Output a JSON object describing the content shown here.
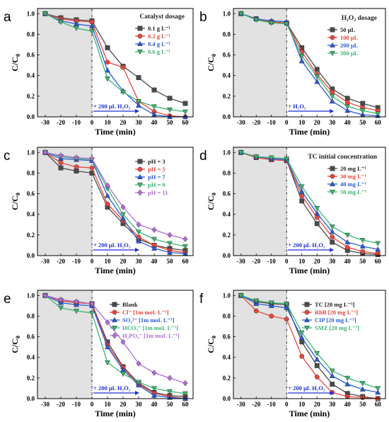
{
  "figure": {
    "x_ticks": [
      "-30",
      "-20",
      "-10",
      "0",
      "10",
      "20",
      "30",
      "40",
      "50",
      "60"
    ],
    "y_ticks": [
      "0.0",
      "0.2",
      "0.4",
      "0.6",
      "0.8",
      "1.0"
    ],
    "colors": [
      "#4a4a4a",
      "#e8463c",
      "#2a5bd7",
      "#3cb371",
      "#b06cd8"
    ]
  },
  "chart_data": [
    {
      "panel": "a",
      "type": "line",
      "xlabel": "Time (min)",
      "ylabel": "C/C0",
      "xlim": [
        -35,
        65
      ],
      "ylim": [
        0,
        1.05
      ],
      "dark_region": [
        -35,
        0
      ],
      "annotation": {
        "text": "+ 200 μL  H₂O₂",
        "x": 0
      },
      "legend": {
        "title": "Catalyst dosage",
        "position": "top-right"
      },
      "x": [
        -30,
        -20,
        -10,
        0,
        10,
        20,
        30,
        40,
        50,
        60
      ],
      "series": [
        {
          "name": "0.1 g L⁻¹",
          "color": "#4a4a4a",
          "marker": "square",
          "values": [
            1.0,
            0.96,
            0.94,
            0.93,
            0.67,
            0.49,
            0.38,
            0.26,
            0.18,
            0.13
          ]
        },
        {
          "name": "0.2 g L⁻¹",
          "color": "#e8463c",
          "marker": "circle",
          "values": [
            1.0,
            0.95,
            0.93,
            0.92,
            0.53,
            0.48,
            0.15,
            0.05,
            0.01,
            0.0
          ]
        },
        {
          "name": "0.4 g L⁻¹",
          "color": "#2a5bd7",
          "marker": "triangle-up",
          "values": [
            1.0,
            0.93,
            0.9,
            0.88,
            0.45,
            0.25,
            0.11,
            0.02,
            0.0,
            0.0
          ]
        },
        {
          "name": "0.6 g L⁻¹",
          "color": "#3cb371",
          "marker": "triangle-down",
          "values": [
            1.0,
            0.92,
            0.86,
            0.83,
            0.37,
            0.24,
            0.15,
            0.1,
            0.07,
            0.05
          ]
        }
      ]
    },
    {
      "panel": "b",
      "type": "line",
      "xlabel": "Time (min)",
      "ylabel": "C/C0",
      "xlim": [
        -35,
        65
      ],
      "ylim": [
        0,
        1.05
      ],
      "dark_region": [
        -35,
        0
      ],
      "annotation": {
        "text": "+ H₂O₂",
        "x": 0
      },
      "legend": {
        "title": "H₂O₂ dosage",
        "position": "top-right"
      },
      "x": [
        -30,
        -20,
        -10,
        0,
        10,
        20,
        30,
        40,
        50,
        60
      ],
      "series": [
        {
          "name": "50 μL",
          "color": "#4a4a4a",
          "marker": "square",
          "values": [
            1.0,
            0.95,
            0.92,
            0.91,
            0.67,
            0.46,
            0.27,
            0.18,
            0.13,
            0.09
          ]
        },
        {
          "name": "100 μL",
          "color": "#e8463c",
          "marker": "circle",
          "values": [
            1.0,
            0.95,
            0.92,
            0.91,
            0.63,
            0.41,
            0.24,
            0.14,
            0.09,
            0.06
          ]
        },
        {
          "name": "200 μL",
          "color": "#2a5bd7",
          "marker": "triangle-up",
          "values": [
            1.0,
            0.95,
            0.93,
            0.92,
            0.54,
            0.34,
            0.15,
            0.06,
            0.02,
            0.01
          ]
        },
        {
          "name": "300 μL",
          "color": "#3cb371",
          "marker": "triangle-down",
          "values": [
            1.0,
            0.94,
            0.91,
            0.9,
            0.59,
            0.39,
            0.2,
            0.1,
            0.06,
            0.03
          ]
        }
      ]
    },
    {
      "panel": "c",
      "type": "line",
      "xlabel": "Time (min)",
      "ylabel": "C/C0",
      "xlim": [
        -35,
        65
      ],
      "ylim": [
        0,
        1.05
      ],
      "dark_region": [
        -35,
        0
      ],
      "annotation": {
        "text": "+ 200 μL  H₂O₂",
        "x": 0
      },
      "legend": {
        "title": "",
        "position": "top-right"
      },
      "x": [
        -30,
        -20,
        -10,
        0,
        10,
        20,
        30,
        40,
        50,
        60
      ],
      "series": [
        {
          "name": "pH = 3",
          "color": "#4a4a4a",
          "marker": "square",
          "values": [
            1.0,
            0.85,
            0.82,
            0.8,
            0.47,
            0.31,
            0.16,
            0.1,
            0.07,
            0.05
          ]
        },
        {
          "name": "pH = 5",
          "color": "#e8463c",
          "marker": "circle",
          "values": [
            1.0,
            0.9,
            0.86,
            0.85,
            0.5,
            0.34,
            0.18,
            0.1,
            0.05,
            0.03
          ]
        },
        {
          "name": "pH = 7",
          "color": "#2a5bd7",
          "marker": "triangle-up",
          "values": [
            1.0,
            0.94,
            0.93,
            0.92,
            0.58,
            0.36,
            0.14,
            0.07,
            0.03,
            0.02
          ]
        },
        {
          "name": "pH = 9",
          "color": "#3cb371",
          "marker": "triangle-down",
          "values": [
            1.0,
            0.96,
            0.94,
            0.93,
            0.65,
            0.4,
            0.23,
            0.16,
            0.12,
            0.09
          ]
        },
        {
          "name": "pH = 11",
          "color": "#b06cd8",
          "marker": "diamond",
          "values": [
            1.0,
            0.97,
            0.95,
            0.94,
            0.68,
            0.47,
            0.3,
            0.25,
            0.2,
            0.16
          ]
        }
      ]
    },
    {
      "panel": "d",
      "type": "line",
      "xlabel": "Time (min)",
      "ylabel": "C/C0",
      "xlim": [
        -35,
        65
      ],
      "ylim": [
        0,
        1.05
      ],
      "dark_region": [
        -35,
        0
      ],
      "annotation": {
        "text": "+ 200 μL  H₂O₂",
        "x": 0
      },
      "legend": {
        "title": "TC initial concentration",
        "position": "top-right"
      },
      "x": [
        -30,
        -20,
        -10,
        0,
        10,
        20,
        30,
        40,
        50,
        60
      ],
      "series": [
        {
          "name": "20 mg L⁻¹",
          "color": "#4a4a4a",
          "marker": "square",
          "values": [
            1.0,
            0.95,
            0.93,
            0.92,
            0.53,
            0.31,
            0.13,
            0.05,
            0.02,
            0.01
          ]
        },
        {
          "name": "30 mg L⁻¹",
          "color": "#e8463c",
          "marker": "circle",
          "values": [
            1.0,
            0.95,
            0.93,
            0.92,
            0.58,
            0.37,
            0.18,
            0.08,
            0.04,
            0.02
          ]
        },
        {
          "name": "40 mg L⁻¹",
          "color": "#2a5bd7",
          "marker": "triangle-up",
          "values": [
            1.0,
            0.96,
            0.94,
            0.93,
            0.62,
            0.41,
            0.23,
            0.13,
            0.09,
            0.06
          ]
        },
        {
          "name": "50 mg L⁻¹",
          "color": "#3cb371",
          "marker": "triangle-down",
          "values": [
            1.0,
            0.96,
            0.95,
            0.94,
            0.67,
            0.46,
            0.28,
            0.2,
            0.15,
            0.12
          ]
        }
      ]
    },
    {
      "panel": "e",
      "type": "line",
      "xlabel": "Time (min)",
      "ylabel": "C/C0",
      "xlim": [
        -35,
        65
      ],
      "ylim": [
        0,
        1.05
      ],
      "dark_region": [
        -35,
        0
      ],
      "annotation": {
        "text": "+ 200 μL  H₂O₂",
        "x": 0
      },
      "legend": {
        "title": "",
        "position": "top-right"
      },
      "x": [
        -30,
        -20,
        -10,
        0,
        10,
        20,
        30,
        40,
        50,
        60
      ],
      "series": [
        {
          "name": "Blank",
          "color": "#4a4a4a",
          "marker": "square",
          "values": [
            1.0,
            0.95,
            0.93,
            0.92,
            0.55,
            0.31,
            0.15,
            0.06,
            0.03,
            0.02
          ]
        },
        {
          "name": "Cl⁻ [1m moL L⁻¹]",
          "color": "#e8463c",
          "marker": "circle",
          "values": [
            1.0,
            0.95,
            0.93,
            0.92,
            0.52,
            0.3,
            0.14,
            0.05,
            0.02,
            0.0
          ]
        },
        {
          "name": "SO₄²⁻ [1m moL L⁻¹]",
          "color": "#2a5bd7",
          "marker": "triangle-up",
          "values": [
            1.0,
            0.93,
            0.91,
            0.9,
            0.5,
            0.28,
            0.13,
            0.03,
            0.01,
            0.0
          ]
        },
        {
          "name": "HCO₃⁻ [1m moL L⁻¹]",
          "color": "#3cb371",
          "marker": "triangle-down",
          "values": [
            1.0,
            0.88,
            0.85,
            0.83,
            0.35,
            0.24,
            0.16,
            0.1,
            0.07,
            0.05
          ]
        },
        {
          "name": "H₂PO₄⁻ [1m moL L⁻¹]",
          "color": "#b06cd8",
          "marker": "diamond",
          "values": [
            1.0,
            0.96,
            0.94,
            0.92,
            0.74,
            0.55,
            0.34,
            0.25,
            0.2,
            0.15
          ]
        }
      ]
    },
    {
      "panel": "f",
      "type": "line",
      "xlabel": "Time (min)",
      "ylabel": "C/C0",
      "xlim": [
        -35,
        65
      ],
      "ylim": [
        0,
        1.05
      ],
      "dark_region": [
        -35,
        0
      ],
      "annotation": {
        "text": "+ 200 μL  H₂O₂",
        "x": 0
      },
      "legend": {
        "title": "",
        "position": "top-right"
      },
      "x": [
        -30,
        -20,
        -10,
        0,
        10,
        20,
        30,
        40,
        50,
        60
      ],
      "series": [
        {
          "name": "TC  [20 mg L⁻¹]",
          "color": "#4a4a4a",
          "marker": "square",
          "values": [
            1.0,
            0.94,
            0.92,
            0.91,
            0.55,
            0.32,
            0.14,
            0.05,
            0.02,
            0.0
          ]
        },
        {
          "name": "RhB [20 mg L⁻¹]",
          "color": "#e8463c",
          "marker": "circle",
          "values": [
            1.0,
            0.85,
            0.8,
            0.77,
            0.41,
            0.21,
            0.06,
            0.02,
            0.01,
            0.0
          ]
        },
        {
          "name": "CIP  [20 mg L⁻¹]",
          "color": "#2a5bd7",
          "marker": "triangle-up",
          "values": [
            1.0,
            0.92,
            0.9,
            0.88,
            0.59,
            0.38,
            0.22,
            0.14,
            0.09,
            0.06
          ]
        },
        {
          "name": "SMZ [20 mg L⁻¹]",
          "color": "#3cb371",
          "marker": "triangle-down",
          "values": [
            1.0,
            0.95,
            0.93,
            0.92,
            0.64,
            0.44,
            0.27,
            0.2,
            0.15,
            0.1
          ]
        }
      ]
    }
  ]
}
